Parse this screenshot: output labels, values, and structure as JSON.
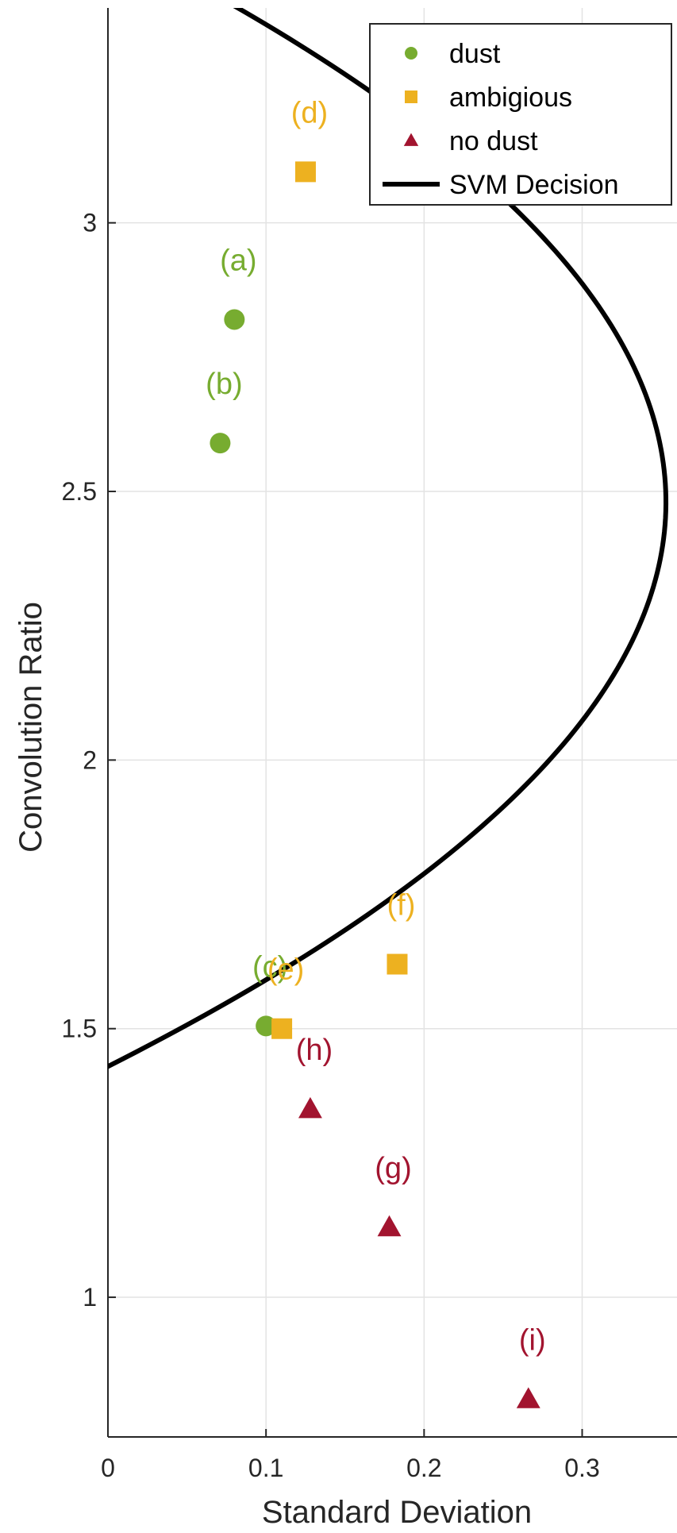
{
  "chart_data": {
    "type": "scatter",
    "xlabel": "Standard Deviation",
    "ylabel": "Convolution Ratio",
    "xlim": [
      0,
      0.36
    ],
    "ylim": [
      0.74,
      3.4
    ],
    "x_ticks": [
      0,
      0.1,
      0.2,
      0.3
    ],
    "x_tick_labels": [
      "0",
      "0.1",
      "0.2",
      "0.3"
    ],
    "y_ticks": [
      1,
      1.5,
      2,
      2.5,
      3
    ],
    "y_tick_labels": [
      "1",
      "1.5",
      "2",
      "2.5",
      "3"
    ],
    "grid": true,
    "legend_position": "top-right",
    "series": [
      {
        "name": "dust",
        "marker": "circle",
        "color": "#77AC30",
        "points": [
          {
            "label": "(a)",
            "x": 0.08,
            "y": 2.82
          },
          {
            "label": "(b)",
            "x": 0.071,
            "y": 2.59
          },
          {
            "label": "(c)",
            "x": 0.1,
            "y": 1.505
          }
        ]
      },
      {
        "name": "ambigious",
        "marker": "square",
        "color": "#EDB120",
        "points": [
          {
            "label": "(d)",
            "x": 0.125,
            "y": 3.095
          },
          {
            "label": "(e)",
            "x": 0.11,
            "y": 1.5
          },
          {
            "label": "(f)",
            "x": 0.183,
            "y": 1.62
          }
        ]
      },
      {
        "name": "no dust",
        "marker": "triangle",
        "color": "#A2142F",
        "points": [
          {
            "label": "(h)",
            "x": 0.128,
            "y": 1.35
          },
          {
            "label": "(g)",
            "x": 0.178,
            "y": 1.13
          },
          {
            "label": "(i)",
            "x": 0.266,
            "y": 0.81
          }
        ]
      }
    ],
    "decision_boundary": {
      "name": "SVM Decision",
      "color": "#000000",
      "x_vertex": 0.353,
      "y_vertex": 2.48,
      "a": 0.32,
      "y_range": [
        1.38,
        3.42
      ]
    }
  }
}
